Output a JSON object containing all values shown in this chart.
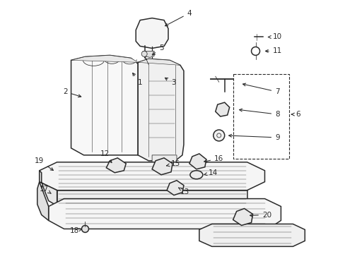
{
  "bg_color": "#ffffff",
  "line_color": "#2a2a2a",
  "figsize": [
    4.89,
    3.6
  ],
  "dpi": 100,
  "label_fs": 7.5,
  "lw_main": 1.1,
  "lw_thin": 0.55
}
